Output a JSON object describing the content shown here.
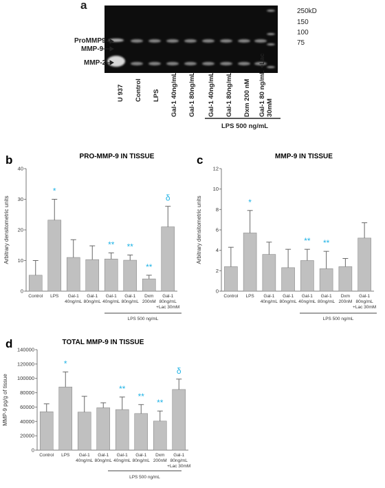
{
  "panel_a": {
    "letter": "a",
    "ladder": [
      "250kD",
      "150",
      "100",
      "75"
    ],
    "side_labels": [
      "ProMMP9",
      "MMP-9",
      "MMP-2"
    ],
    "lanes": [
      "U 937",
      "Control",
      "LPS",
      "Gal-1 40ng/mL",
      "Gal-1 80ng/mL",
      "Gal-1 40ng/mL",
      "Gal-1 80ng/mL",
      "Dxm 200 nM",
      "Gal-1 80 ng/mL +Lac 30mM"
    ],
    "group_label": "LPS 500 ng/mL"
  },
  "chart_data": [
    {
      "letter": "b",
      "type": "bar",
      "title": "PRO-MMP-9 IN TISSUE",
      "ylabel": "Arbitrary densitometric units",
      "ylim": [
        0,
        40
      ],
      "yticks": [
        "0",
        "10",
        "20",
        "30",
        "40"
      ],
      "categories": [
        [
          "Control"
        ],
        [
          "LPS"
        ],
        [
          "Gal-1",
          "40ng/mL"
        ],
        [
          "Gal-1",
          "80ng/mL"
        ],
        [
          "Gal-1",
          "40ng/mL"
        ],
        [
          "Gal-1",
          "80ng/mL"
        ],
        [
          "Dxm",
          "200nM"
        ],
        [
          "Gal-1",
          "80ng/mL",
          "+Lac 30mM"
        ]
      ],
      "values": [
        5.2,
        23.2,
        11,
        10.3,
        10.5,
        10.1,
        4,
        21
      ],
      "errors": [
        4.8,
        6.8,
        5.8,
        4.5,
        2,
        1.7,
        1.2,
        6.7
      ],
      "significance": [
        "",
        "*",
        "",
        "",
        "**",
        "**",
        "**",
        "δ"
      ],
      "group_label": "LPS 500 ng/mL",
      "bar_color": "#c0c0c0",
      "sig_color": "#1fb3e6"
    },
    {
      "letter": "c",
      "type": "bar",
      "title": "MMP-9 IN TISSUE",
      "ylabel": "Arbitrary densitometric units",
      "ylim": [
        0,
        12
      ],
      "yticks": [
        "0",
        "2",
        "4",
        "6",
        "8",
        "10",
        "12"
      ],
      "categories": [
        [
          "Control"
        ],
        [
          "LPS"
        ],
        [
          "Gal-1",
          "40ng/mL"
        ],
        [
          "Gal-1",
          "80ng/mL"
        ],
        [
          "Gal-1",
          "40ng/mL"
        ],
        [
          "Gal-1",
          "80ng/mL"
        ],
        [
          "Dxm",
          "200nM"
        ],
        [
          "Gal-1",
          "80ng/mL",
          "+Lac 30mM"
        ]
      ],
      "values": [
        2.4,
        5.7,
        3.6,
        2.3,
        3,
        2.2,
        2.4,
        5.2
      ],
      "errors": [
        1.9,
        2.2,
        1.2,
        1.8,
        1.1,
        1.7,
        0.8,
        1.5
      ],
      "significance": [
        "",
        "*",
        "",
        "",
        "**",
        "**",
        "",
        ""
      ],
      "group_label": "LPS 500 ng/mL",
      "bar_color": "#c0c0c0",
      "sig_color": "#1fb3e6"
    },
    {
      "letter": "d",
      "type": "bar",
      "title": "TOTAL MMP-9 IN TISSUE",
      "ylabel": "MMP-9 pg/g of tissue",
      "ylim": [
        0,
        140000
      ],
      "yticks": [
        "0",
        "20000",
        "40000",
        "60000",
        "80000",
        "100000",
        "120000",
        "140000"
      ],
      "categories": [
        [
          "Control"
        ],
        [
          "LPS"
        ],
        [
          "Gal-1",
          "40ng/mL"
        ],
        [
          "Gal-1",
          "80ng/mL"
        ],
        [
          "Gal-1",
          "40ng/mL"
        ],
        [
          "Gal-1",
          "80ng/mL"
        ],
        [
          "Dxm",
          "200nM"
        ],
        [
          "Gal-1",
          "80ng/mL",
          "+Lac 30mM"
        ]
      ],
      "values": [
        53500,
        88000,
        53000,
        59000,
        56500,
        51000,
        40500,
        84500
      ],
      "errors": [
        11000,
        21000,
        22000,
        7000,
        17500,
        12500,
        14000,
        14500
      ],
      "significance": [
        "",
        "*",
        "",
        "",
        "**",
        "**",
        "**",
        "δ"
      ],
      "group_label": "LPS 500 ng/mL",
      "bar_color": "#c0c0c0",
      "sig_color": "#1fb3e6"
    }
  ]
}
